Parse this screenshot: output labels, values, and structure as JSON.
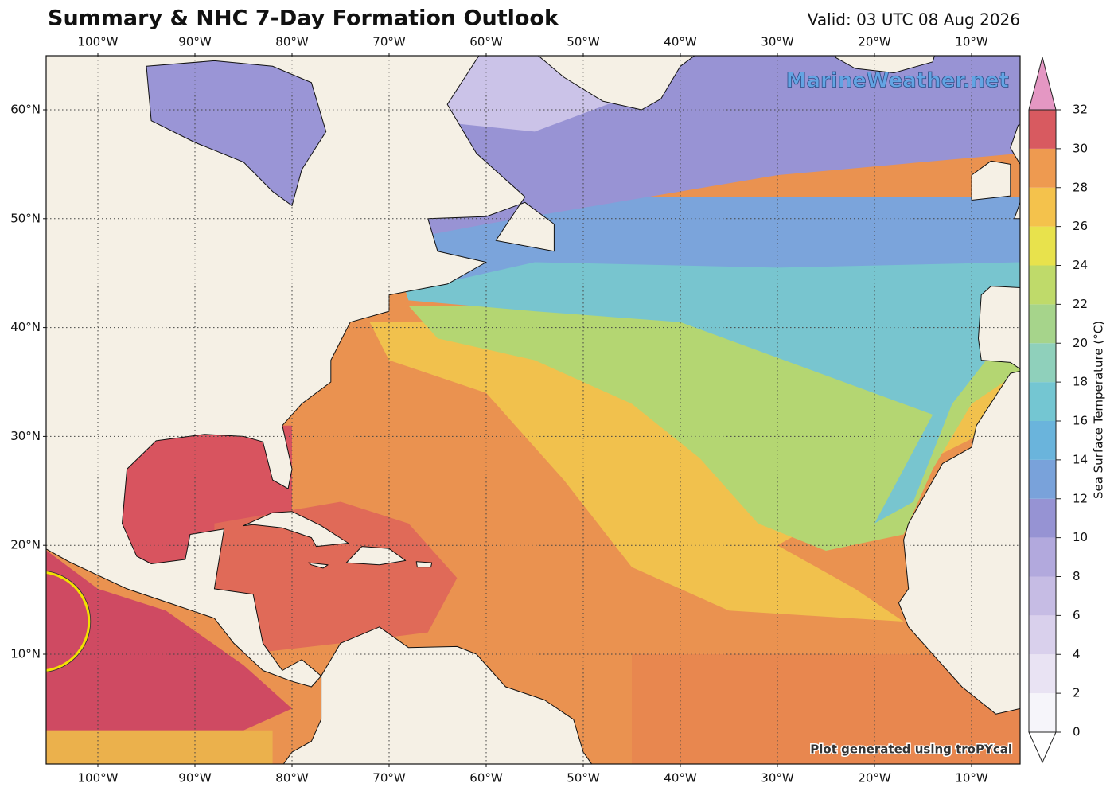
{
  "map": {
    "title": "Summary & NHC 7-Day Formation Outlook",
    "valid": "Valid: 03 UTC 08 Aug 2026",
    "lon_labels": [
      "100°W",
      "90°W",
      "80°W",
      "70°W",
      "60°W",
      "50°W",
      "40°W",
      "30°W",
      "20°W",
      "10°W"
    ],
    "lat_labels": [
      "60°N",
      "50°N",
      "40°N",
      "30°N",
      "20°N",
      "10°N"
    ],
    "watermark": "MarineWeather.net",
    "credit": "Plot generated using troPYcal",
    "colorbar": {
      "label": "Sea Surface Temperature (°C)",
      "ticks": [
        0,
        2,
        4,
        6,
        8,
        10,
        12,
        14,
        16,
        18,
        20,
        22,
        24,
        26,
        28,
        30,
        32
      ],
      "colors": [
        "#f6f5fa",
        "#e9e3f3",
        "#d9d0ec",
        "#c6bce4",
        "#b2a9dd",
        "#9693d3",
        "#79a2da",
        "#6ab4dc",
        "#74c6d2",
        "#8fd0bb",
        "#a6d48b",
        "#bfda6a",
        "#e8e24c",
        "#f4c24c",
        "#ee9a50",
        "#d85a60"
      ]
    }
  }
}
